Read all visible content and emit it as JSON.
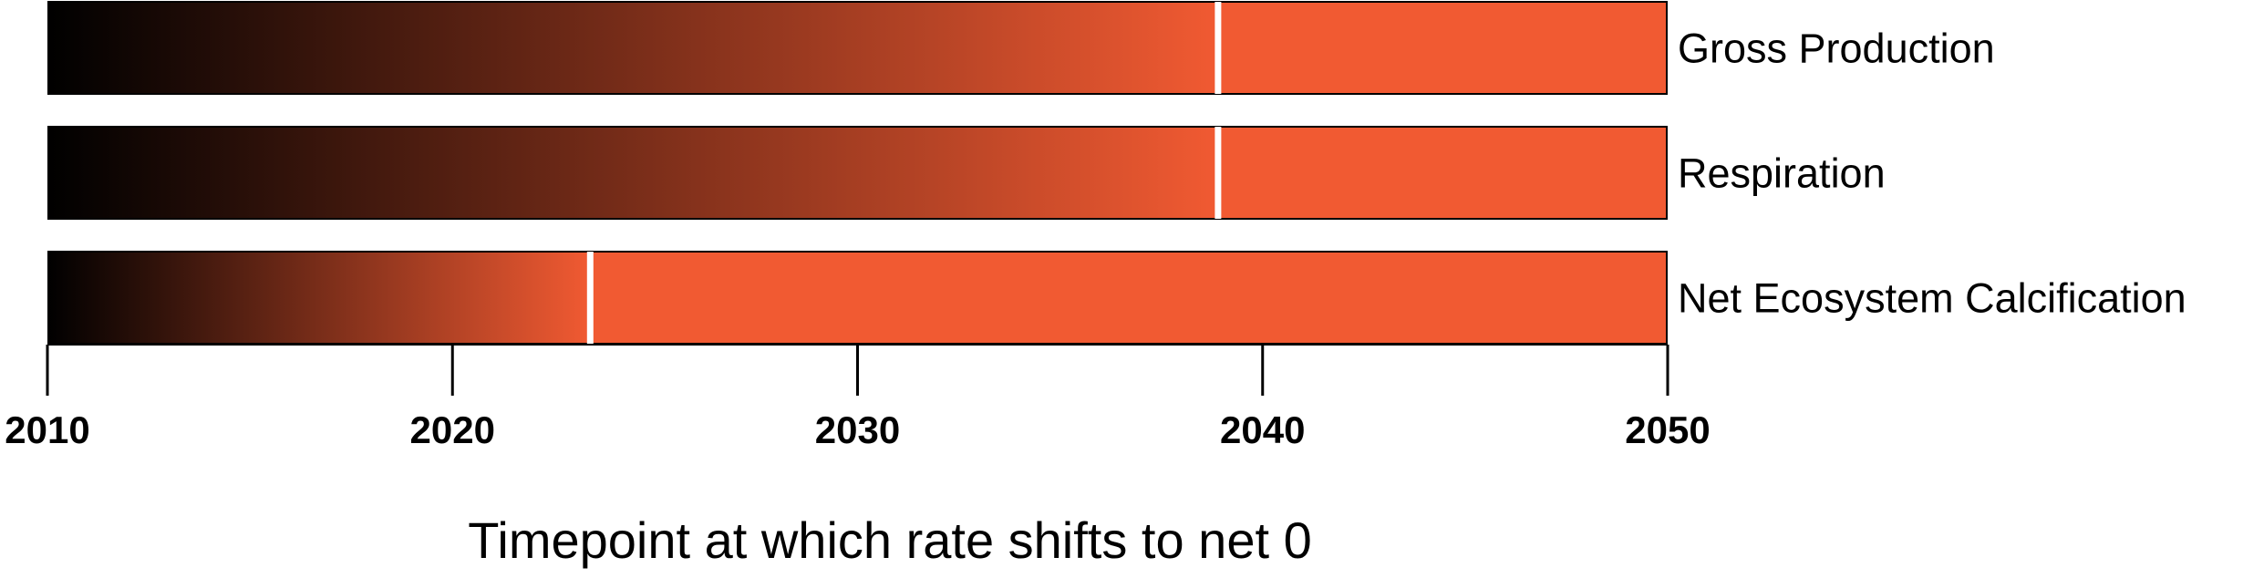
{
  "chart_data": {
    "type": "gradient-bar",
    "xlim": [
      2010,
      2050
    ],
    "xticks": [
      2010,
      2020,
      2030,
      2040,
      2050
    ],
    "xlabel": "Timepoint at which rate shifts to net 0",
    "grid": false,
    "legend": "none",
    "colors": {
      "start": "#000000",
      "end": "#f15a32",
      "marker": "#ffffff",
      "outline": "#000000"
    },
    "series": [
      {
        "name": "Gross Production",
        "gradient_start": 2010,
        "gradient_end": 2040,
        "marker": 2038.9
      },
      {
        "name": "Respiration",
        "gradient_start": 2010,
        "gradient_end": 2040,
        "marker": 2038.9
      },
      {
        "name": "Net Ecosystem Calcification",
        "gradient_start": 2010,
        "gradient_end": 2040,
        "marker": 2023.4
      }
    ]
  }
}
